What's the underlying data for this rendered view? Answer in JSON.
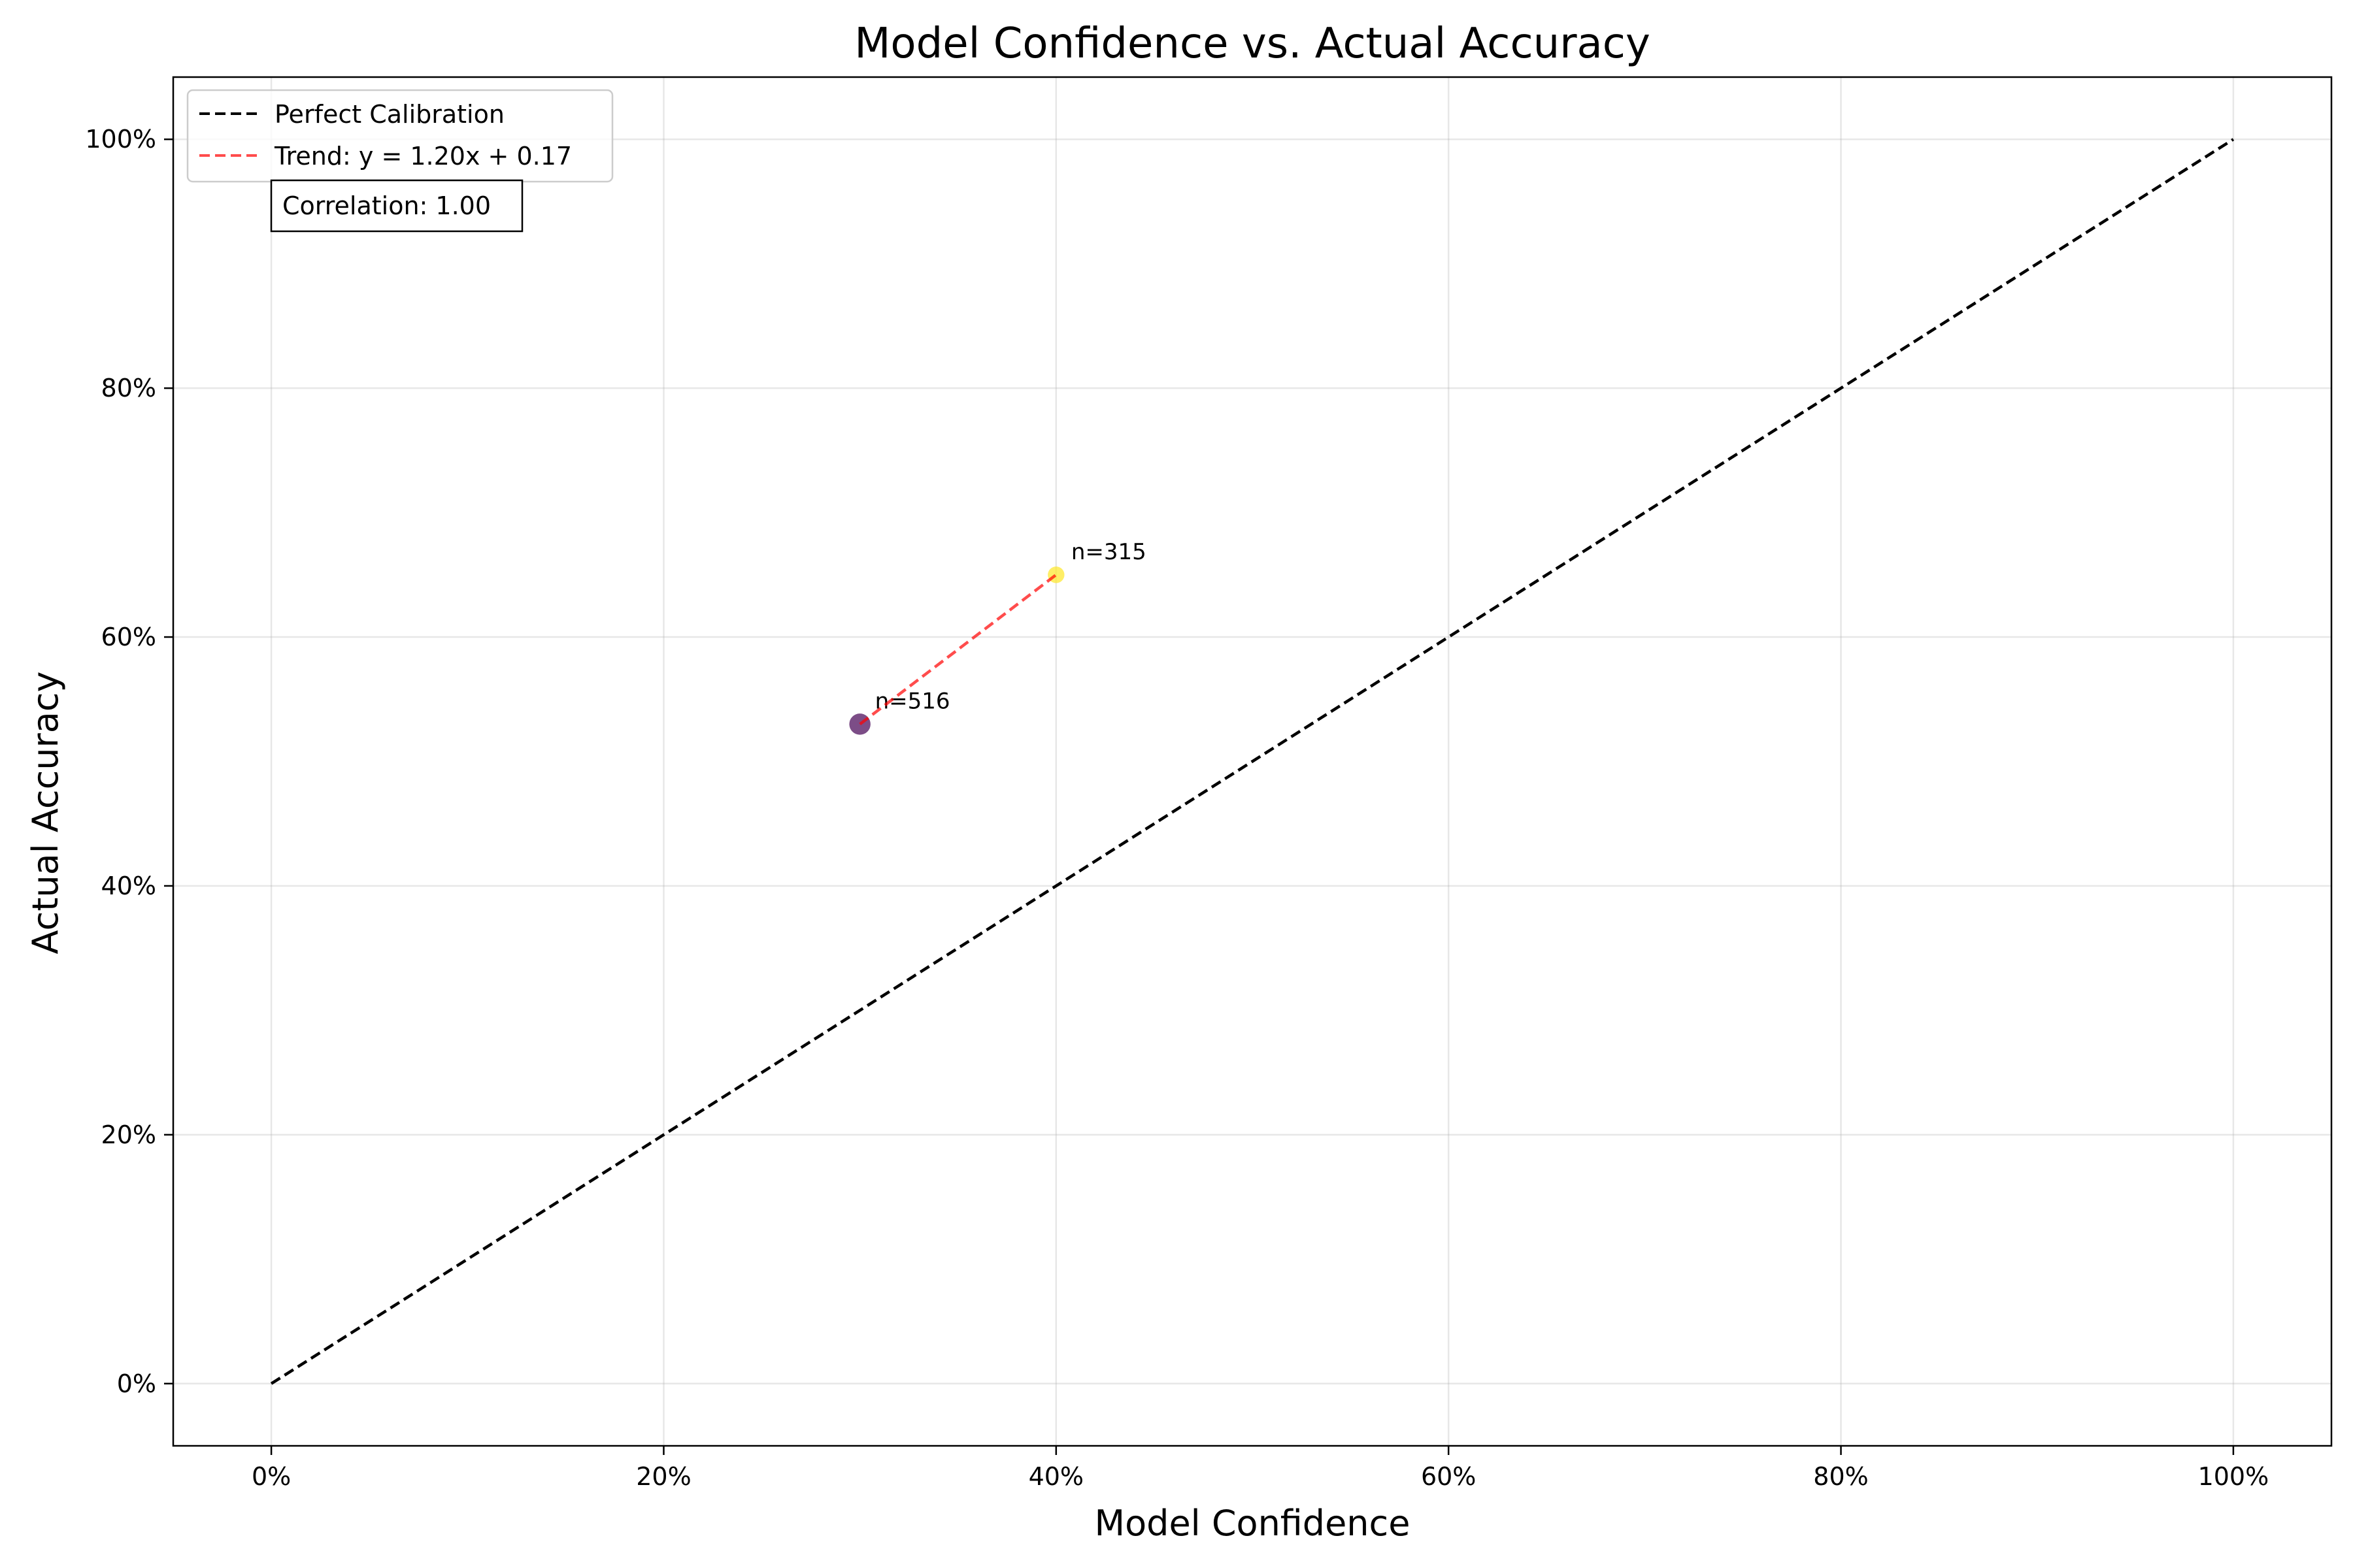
{
  "chart_data": {
    "type": "scatter",
    "title": "Model Confidence vs. Actual Accuracy",
    "xlabel": "Model Confidence",
    "ylabel": "Actual Accuracy",
    "xlim": [
      -0.05,
      1.05
    ],
    "ylim": [
      -0.05,
      1.05
    ],
    "xticks": [
      0,
      0.2,
      0.4,
      0.6,
      0.8,
      1.0
    ],
    "xtick_labels": [
      "0%",
      "20%",
      "40%",
      "60%",
      "80%",
      "100%"
    ],
    "yticks": [
      0,
      0.2,
      0.4,
      0.6,
      0.8,
      1.0
    ],
    "ytick_labels": [
      "0%",
      "20%",
      "40%",
      "60%",
      "80%",
      "100%"
    ],
    "grid": true,
    "legend_position": "top-left",
    "points": [
      {
        "x": 0.3,
        "y": 0.53,
        "n": 516,
        "label": "n=516",
        "color": "#440154"
      },
      {
        "x": 0.4,
        "y": 0.65,
        "n": 315,
        "label": "n=315",
        "color": "#fde725"
      }
    ],
    "series": [
      {
        "name": "Perfect Calibration",
        "x": [
          0,
          1
        ],
        "y": [
          0,
          1
        ],
        "color": "#000000",
        "style": "dashed"
      },
      {
        "name": "Trend: y = 1.20x + 0.17",
        "x": [
          0.3,
          0.4
        ],
        "y": [
          0.53,
          0.65
        ],
        "color": "#ff0000",
        "style": "dashed"
      }
    ],
    "annotation": "Correlation: 1.00"
  }
}
